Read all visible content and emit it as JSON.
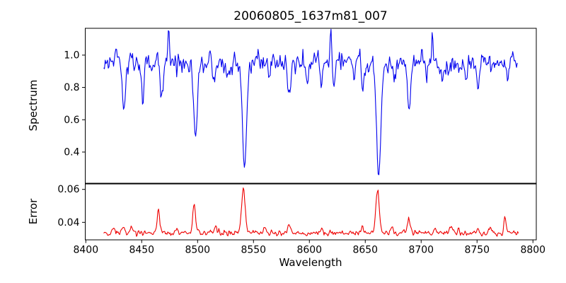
{
  "figure": {
    "title": "20060805_1637m81_007",
    "background": "#ffffff",
    "spine_color": "#000000"
  },
  "x_axis": {
    "label": "Wavelength",
    "ticks": [
      8400,
      8450,
      8500,
      8550,
      8600,
      8650,
      8700,
      8750,
      8800
    ],
    "xlim": [
      8399.5,
      8803
    ]
  },
  "chart_data": [
    {
      "type": "line",
      "name": "spectrum",
      "color": "#0000ee",
      "linewidth": 1.1,
      "ylabel": "Spectrum",
      "yticks": [
        0.4,
        0.6,
        0.8,
        1.0
      ],
      "ytick_decimals": 1,
      "ylim": [
        0.207,
        1.166
      ],
      "x_data_range": [
        8416,
        8786
      ],
      "n_points": 545,
      "seed": 20060805,
      "continuum": 0.95,
      "noise_sigma": 0.031,
      "features": [
        {
          "center": 8427,
          "value": 1.09,
          "sigma": 0.8
        },
        {
          "center": 8434,
          "value": 0.67,
          "sigma": 1.2
        },
        {
          "center": 8451,
          "value": 0.7,
          "sigma": 1.1
        },
        {
          "center": 8468,
          "value": 0.74,
          "sigma": 1.1
        },
        {
          "center": 8474,
          "value": 1.09,
          "sigma": 0.7
        },
        {
          "center": 8498,
          "value": 0.48,
          "sigma": 1.7
        },
        {
          "center": 8514,
          "value": 0.82,
          "sigma": 1.0
        },
        {
          "center": 8527,
          "value": 0.87,
          "sigma": 0.9
        },
        {
          "center": 8542,
          "value": 0.3,
          "sigma": 1.8
        },
        {
          "center": 8554,
          "value": 1.07,
          "sigma": 0.7
        },
        {
          "center": 8564,
          "value": 0.85,
          "sigma": 1.0
        },
        {
          "center": 8582,
          "value": 0.78,
          "sigma": 1.3
        },
        {
          "center": 8598,
          "value": 0.88,
          "sigma": 0.9
        },
        {
          "center": 8611,
          "value": 0.8,
          "sigma": 1.1
        },
        {
          "center": 8619,
          "value": 1.09,
          "sigma": 0.7
        },
        {
          "center": 8622,
          "value": 0.84,
          "sigma": 0.9
        },
        {
          "center": 8640,
          "value": 0.86,
          "sigma": 0.9
        },
        {
          "center": 8648,
          "value": 0.8,
          "sigma": 1.0
        },
        {
          "center": 8662,
          "value": 0.25,
          "sigma": 1.9
        },
        {
          "center": 8676,
          "value": 0.87,
          "sigma": 0.9
        },
        {
          "center": 8689,
          "value": 0.64,
          "sigma": 1.3
        },
        {
          "center": 8705,
          "value": 0.86,
          "sigma": 0.9
        },
        {
          "center": 8710,
          "value": 1.12,
          "sigma": 0.7
        },
        {
          "center": 8719,
          "value": 0.83,
          "sigma": 1.0
        },
        {
          "center": 8740,
          "value": 0.82,
          "sigma": 1.0
        },
        {
          "center": 8751,
          "value": 0.8,
          "sigma": 1.1
        },
        {
          "center": 8777,
          "value": 0.83,
          "sigma": 1.0
        }
      ]
    },
    {
      "type": "line",
      "name": "error",
      "color": "#ee0000",
      "linewidth": 1.1,
      "ylabel": "Error",
      "yticks": [
        0.04,
        0.06
      ],
      "ytick_decimals": 2,
      "ylim": [
        0.0294,
        0.0633
      ],
      "x_data_range": [
        8416,
        8787
      ],
      "n_points": 545,
      "seed": 1637,
      "baseline": 0.0335,
      "noise_sigma": 0.0008,
      "features": [
        {
          "center": 8425,
          "value": 0.0365,
          "sigma": 1.5
        },
        {
          "center": 8433,
          "value": 0.038,
          "sigma": 1.2
        },
        {
          "center": 8441,
          "value": 0.0375,
          "sigma": 1.3
        },
        {
          "center": 8465,
          "value": 0.047,
          "sigma": 1.2
        },
        {
          "center": 8481,
          "value": 0.036,
          "sigma": 1.0
        },
        {
          "center": 8497,
          "value": 0.05,
          "sigma": 1.3
        },
        {
          "center": 8516,
          "value": 0.037,
          "sigma": 1.0
        },
        {
          "center": 8541,
          "value": 0.0615,
          "sigma": 1.6
        },
        {
          "center": 8560,
          "value": 0.0365,
          "sigma": 1.0
        },
        {
          "center": 8582,
          "value": 0.038,
          "sigma": 1.2
        },
        {
          "center": 8611,
          "value": 0.0365,
          "sigma": 1.0
        },
        {
          "center": 8647,
          "value": 0.038,
          "sigma": 1.1
        },
        {
          "center": 8661,
          "value": 0.059,
          "sigma": 1.6
        },
        {
          "center": 8674,
          "value": 0.0365,
          "sigma": 1.0
        },
        {
          "center": 8689,
          "value": 0.0425,
          "sigma": 1.2
        },
        {
          "center": 8712,
          "value": 0.037,
          "sigma": 1.0
        },
        {
          "center": 8727,
          "value": 0.0375,
          "sigma": 1.0
        },
        {
          "center": 8750,
          "value": 0.0375,
          "sigma": 1.0
        },
        {
          "center": 8762,
          "value": 0.037,
          "sigma": 1.0
        },
        {
          "center": 8775,
          "value": 0.0435,
          "sigma": 1.1
        }
      ]
    }
  ]
}
